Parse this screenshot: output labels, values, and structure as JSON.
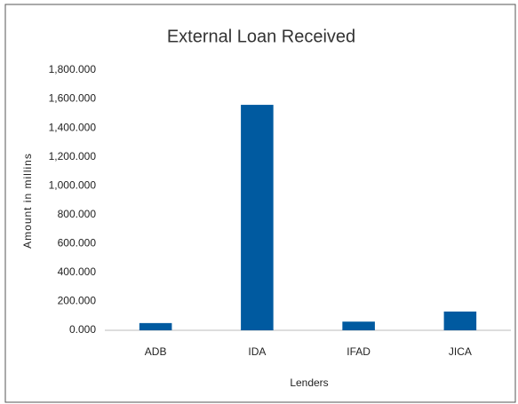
{
  "chart_data": {
    "type": "bar",
    "title": "External Loan Received",
    "x_label": "Lenders",
    "y_label": "Amount in millins",
    "categories": [
      "ADB",
      "IDA",
      "IFAD",
      "JICA"
    ],
    "values": [
      50,
      1560,
      60,
      130
    ],
    "color": "#005aa0",
    "ylim": [
      0,
      1800
    ],
    "yticks": [
      {
        "value": 0,
        "label": "0.000"
      },
      {
        "value": 200,
        "label": "200.000"
      },
      {
        "value": 400,
        "label": "400.000"
      },
      {
        "value": 600,
        "label": "600.000"
      },
      {
        "value": 800,
        "label": "800.000"
      },
      {
        "value": 1000,
        "label": "1,000.000"
      },
      {
        "value": 1200,
        "label": "1,200.000"
      },
      {
        "value": 1400,
        "label": "1,400.000"
      },
      {
        "value": 1600,
        "label": "1,600.000"
      },
      {
        "value": 1800,
        "label": "1,800.000"
      }
    ],
    "grid": false
  }
}
